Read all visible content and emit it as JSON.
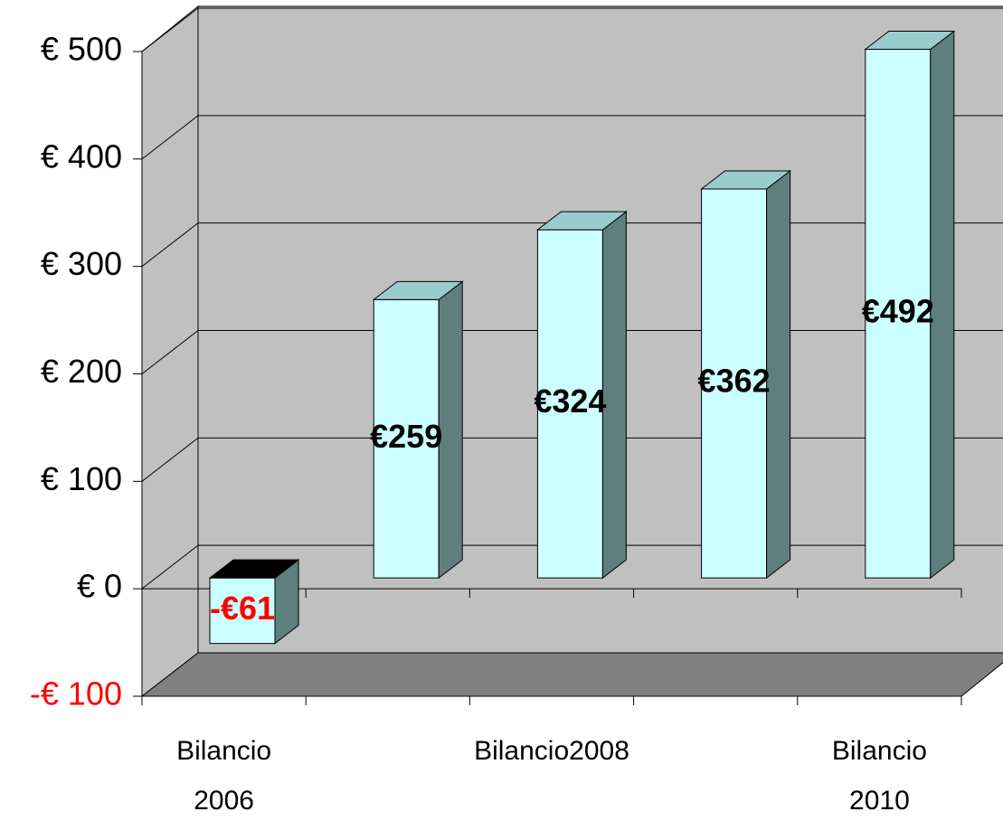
{
  "chart_data": {
    "type": "bar3d",
    "categories": [
      "Bilancio 2006",
      null,
      "Bilancio2008",
      null,
      "Bilancio 2010"
    ],
    "values": [
      -61,
      259,
      324,
      362,
      492
    ],
    "value_labels": [
      "-€61",
      "€259",
      "€324",
      "€362",
      "€492"
    ],
    "ylim": [
      -100,
      500
    ],
    "yticks": [
      {
        "value": -100,
        "label": "-€ 100"
      },
      {
        "value": 0,
        "label": "€ 0"
      },
      {
        "value": 100,
        "label": "€ 100"
      },
      {
        "value": 200,
        "label": "€ 200"
      },
      {
        "value": 300,
        "label": "€ 300"
      },
      {
        "value": 400,
        "label": "€ 400"
      },
      {
        "value": 500,
        "label": "€ 500"
      }
    ],
    "grid": true,
    "color": "#ccffff",
    "side_color": "#5f7f7f",
    "top_color": "#99cccc",
    "negative_color": "#ff0000",
    "negative_top_color": "#000000",
    "wall_color": "#c0c0c0",
    "floor_color": "#808080"
  }
}
